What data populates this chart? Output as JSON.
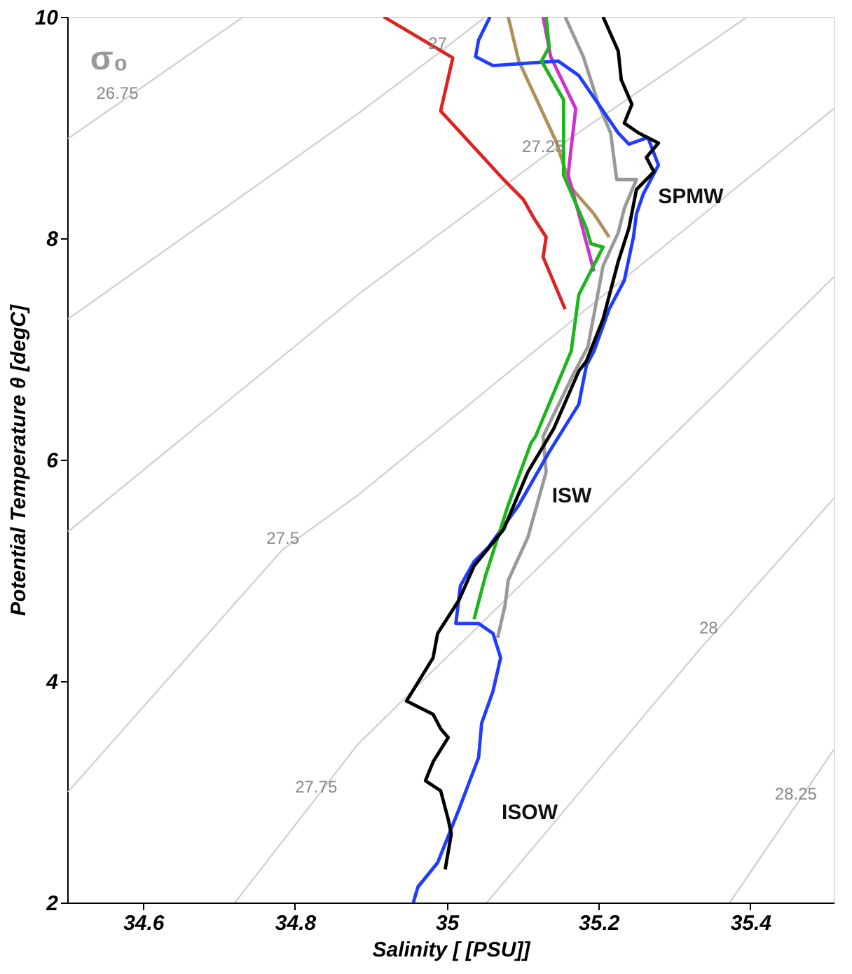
{
  "chart_data": {
    "type": "line",
    "xlabel": "Salinity [ [PSU]]",
    "ylabel": "Potential Temperature θ [degC]",
    "xlim": [
      34.5,
      35.51
    ],
    "ylim": [
      2,
      10
    ],
    "xticks": [
      34.6,
      34.8,
      35,
      35.2,
      35.4
    ],
    "yticks": [
      2,
      4,
      6,
      8,
      10
    ],
    "grid": false,
    "marker": "none",
    "line_style": "solid",
    "series": [
      {
        "color": "#d2d2d2",
        "x": [
          34.501,
          34.732
        ],
        "values": [
          8.9,
          10.0
        ]
      },
      {
        "color": "#d2d2d2",
        "x": [
          34.501,
          34.882,
          34.987,
          35.051
        ],
        "values": [
          7.27,
          9.12,
          9.66,
          10.0
        ]
      },
      {
        "color": "#d2d2d2",
        "x": [
          34.501,
          34.883,
          35.126,
          35.358,
          35.396
        ],
        "values": [
          5.35,
          7.49,
          8.73,
          9.82,
          10.0
        ]
      },
      {
        "color": "#d2d2d2",
        "x": [
          34.501,
          34.784,
          34.883,
          35.121,
          35.51
        ],
        "values": [
          3.0,
          5.19,
          5.68,
          7.01,
          9.17
        ]
      },
      {
        "color": "#d2d2d2",
        "x": [
          34.721,
          34.883,
          35.358,
          35.51
        ],
        "values": [
          2.0,
          3.43,
          6.62,
          7.65
        ]
      },
      {
        "color": "#d2d2d2",
        "x": [
          35.053,
          35.33,
          35.51
        ],
        "values": [
          2.0,
          4.26,
          5.65
        ]
      },
      {
        "color": "#d2d2d2",
        "x": [
          35.373,
          35.51
        ],
        "values": [
          2.0,
          3.38
        ]
      },
      {
        "color": "#dd2222",
        "x": [
          34.917,
          35.008,
          34.992,
          35.075,
          35.101,
          35.115,
          35.131,
          35.127,
          35.156
        ],
        "values": [
          10.0,
          9.63,
          9.15,
          8.53,
          8.35,
          8.18,
          8.01,
          7.83,
          7.36
        ]
      },
      {
        "color": "#b0905a",
        "x": [
          35.081,
          35.095,
          35.145,
          35.154,
          35.166,
          35.194,
          35.214
        ],
        "values": [
          10.0,
          9.6,
          8.86,
          8.66,
          8.44,
          8.22,
          8.01
        ]
      },
      {
        "color": "#cc33cc",
        "x": [
          35.127,
          35.137,
          35.17,
          35.164,
          35.16,
          35.174,
          35.194
        ],
        "values": [
          10.0,
          9.64,
          9.17,
          8.82,
          8.57,
          8.22,
          7.7
        ]
      },
      {
        "color": "#999999",
        "x": [
          35.156,
          35.18,
          35.2,
          35.216,
          35.224,
          35.25,
          35.234,
          35.226,
          35.206,
          35.194,
          35.186,
          35.166,
          35.127,
          35.131,
          35.107,
          35.081,
          35.077,
          35.067
        ],
        "values": [
          10.0,
          9.64,
          9.21,
          8.95,
          8.53,
          8.53,
          8.27,
          8.05,
          7.75,
          7.31,
          7.02,
          6.76,
          6.21,
          5.89,
          5.3,
          4.91,
          4.69,
          4.39
        ]
      },
      {
        "color": "#1f3cff",
        "x": [
          35.057,
          35.042,
          35.038,
          35.061,
          35.147,
          35.174,
          35.2,
          35.226,
          35.24,
          35.265,
          35.279,
          35.259,
          35.25,
          35.246,
          35.234,
          35.214,
          35.194,
          35.184,
          35.174,
          35.135,
          35.095,
          35.055,
          35.036,
          35.018,
          35.012,
          35.042,
          35.061,
          35.071,
          35.061,
          35.046,
          35.042,
          35.016,
          34.988,
          34.962,
          34.956
        ],
        "values": [
          10.0,
          9.79,
          9.64,
          9.56,
          9.6,
          9.47,
          9.21,
          8.95,
          8.85,
          8.91,
          8.66,
          8.4,
          8.22,
          8.01,
          7.62,
          7.36,
          6.98,
          6.85,
          6.5,
          6.07,
          5.59,
          5.21,
          5.08,
          4.86,
          4.52,
          4.52,
          4.43,
          4.21,
          3.91,
          3.62,
          3.31,
          2.84,
          2.36,
          2.14,
          2.0
        ]
      },
      {
        "color": "#1db41d",
        "x": [
          35.131,
          35.135,
          35.125,
          35.154,
          35.154,
          35.184,
          35.19,
          35.206,
          35.174,
          35.164,
          35.117,
          35.111,
          35.081,
          35.051,
          35.036
        ],
        "values": [
          10.0,
          9.73,
          9.6,
          9.25,
          8.57,
          8.09,
          7.95,
          7.92,
          7.49,
          6.98,
          6.21,
          6.15,
          5.59,
          4.95,
          4.56
        ]
      },
      {
        "color": "#000000",
        "x": [
          35.206,
          35.226,
          35.23,
          35.244,
          35.234,
          35.253,
          35.279,
          35.263,
          35.273,
          35.25,
          35.24,
          35.226,
          35.206,
          35.184,
          35.174,
          35.141,
          35.107,
          35.075,
          35.036,
          35.016,
          34.988,
          34.982,
          34.947,
          34.982,
          34.992,
          35.002,
          34.982,
          34.972,
          34.992,
          35.002,
          35.006,
          34.998
        ],
        "values": [
          10.0,
          9.69,
          9.43,
          9.21,
          9.04,
          8.95,
          8.86,
          8.73,
          8.6,
          8.44,
          8.09,
          7.79,
          7.27,
          6.89,
          6.8,
          6.28,
          5.89,
          5.37,
          5.04,
          4.73,
          4.43,
          4.21,
          3.82,
          3.7,
          3.57,
          3.49,
          3.27,
          3.1,
          3.01,
          2.75,
          2.62,
          2.3
        ]
      }
    ],
    "annotations": [
      "σ₀",
      {
        "text": "26.75",
        "x": 34.566,
        "y": 9.21
      },
      {
        "text": "27",
        "x": 34.988,
        "y": 9.66
      },
      {
        "text": "27.25",
        "x": 35.127,
        "y": 8.73
      },
      {
        "text": "27.5",
        "x": 34.784,
        "y": 5.19
      },
      {
        "text": "27.75",
        "x": 34.828,
        "y": 2.94
      },
      {
        "text": "28",
        "x": 35.345,
        "y": 4.38
      },
      {
        "text": "28.25",
        "x": 35.46,
        "y": 2.88
      },
      "SPMW",
      "ISW",
      "ISOW"
    ]
  }
}
